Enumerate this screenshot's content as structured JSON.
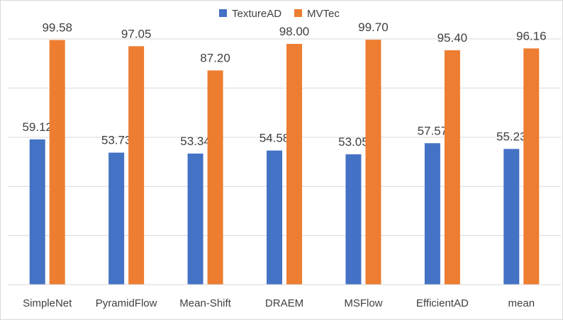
{
  "chart_data": {
    "type": "bar",
    "title": "",
    "xlabel": "",
    "ylabel": "",
    "ylim": [
      0,
      115
    ],
    "grid": true,
    "legend_position": "top",
    "categories": [
      "SimpleNet",
      "PyramidFlow",
      "Mean-Shift",
      "DRAEM",
      "MSFlow",
      "EfficientAD",
      "mean"
    ],
    "series": [
      {
        "name": "TextureAD",
        "color": "#4472C4",
        "values": [
          59.12,
          53.73,
          53.34,
          54.58,
          53.05,
          57.57,
          55.23
        ],
        "labels": [
          "59.12",
          "53.73",
          "53.34",
          "54.58",
          "53.05",
          "57.57",
          "55.23"
        ]
      },
      {
        "name": "MVTec",
        "color": "#ED7D31",
        "values": [
          99.58,
          97.05,
          87.2,
          98.0,
          99.7,
          95.4,
          96.16
        ],
        "labels": [
          "99.58",
          "97.05",
          "87.20",
          "98.00",
          "99.70",
          "95.40",
          "96.16"
        ]
      }
    ],
    "colors": {
      "grid": "#d9d9d9",
      "axis": "#d9d9d9",
      "text": "#404040"
    }
  }
}
